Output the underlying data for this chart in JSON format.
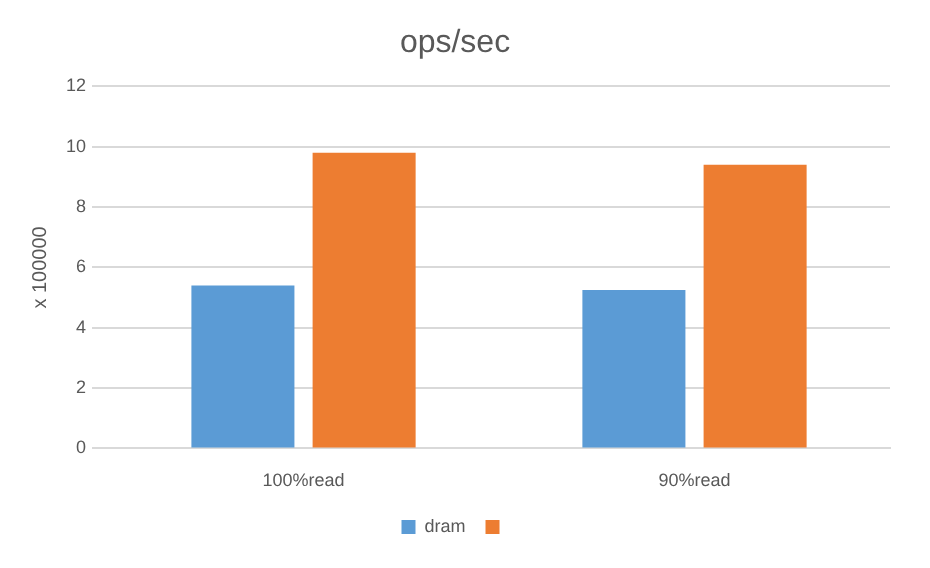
{
  "chart_data": {
    "type": "bar",
    "title": "ops/sec",
    "ylabel": "x 100000",
    "categories": [
      "100%read",
      "90%read"
    ],
    "series": [
      {
        "name": "dram",
        "color": "#5b9bd5",
        "values": [
          5.4,
          5.25
        ]
      },
      {
        "color": "#ed7d31",
        "values": [
          9.8,
          9.4
        ]
      }
    ],
    "ylim": [
      0,
      12
    ],
    "yticks": [
      0,
      2,
      4,
      6,
      8,
      10,
      12
    ],
    "grid": "y",
    "legend": "bottom"
  }
}
